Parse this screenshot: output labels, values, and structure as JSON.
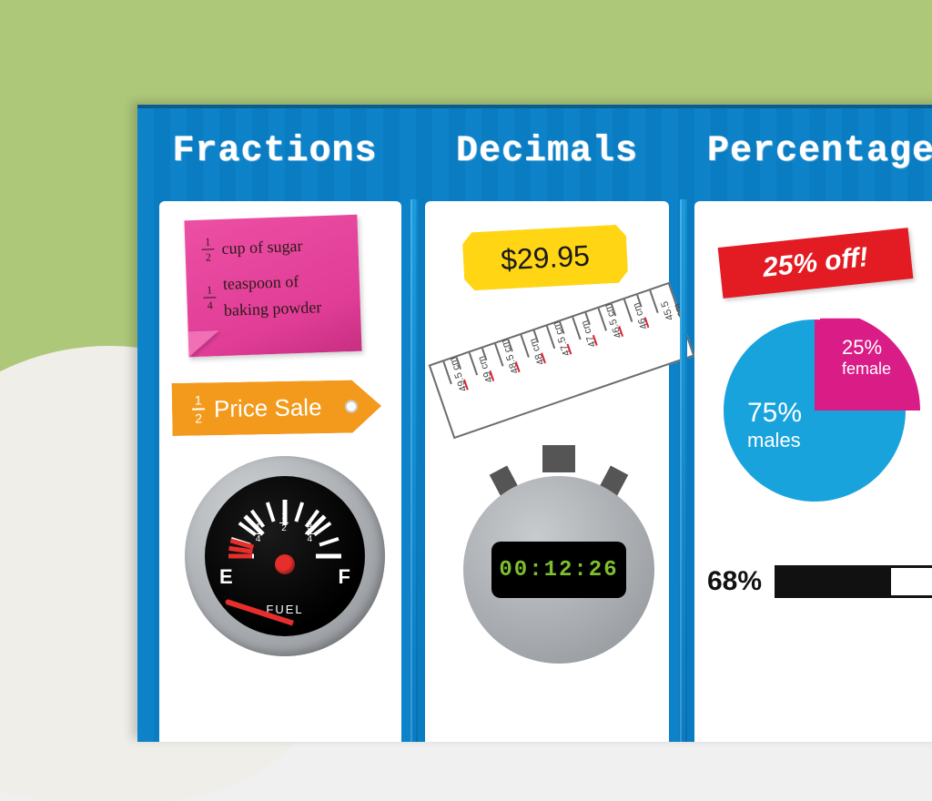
{
  "background": {
    "top_color": "#aec87a",
    "blob_color": "#efeee9"
  },
  "poster": {
    "stripe_colors": [
      "#1188cf",
      "#0a7cc2"
    ],
    "columns": [
      {
        "title": "Fractions"
      },
      {
        "title": "Decimals"
      },
      {
        "title": "Percentages"
      }
    ]
  },
  "fractions": {
    "sticky": {
      "bg": "#e13d97",
      "lines": [
        {
          "num": "1",
          "den": "2",
          "text": "cup of sugar"
        },
        {
          "num": "1",
          "den": "4",
          "text": "teaspoon of baking powder"
        }
      ]
    },
    "tag": {
      "bg": "#f39a1c",
      "frac_num": "1",
      "frac_den": "2",
      "text": "Price Sale"
    },
    "gauge": {
      "rim": "#a9acb0",
      "face": "#000",
      "left_label": "E",
      "right_label": "F",
      "bottom_label": "FUEL",
      "fracs": [
        {
          "num": "1",
          "den": "4",
          "angle": -45
        },
        {
          "num": "1",
          "den": "2",
          "angle": 0
        },
        {
          "num": "3",
          "den": "4",
          "angle": 45
        }
      ],
      "ticks_deg": [
        -90,
        -72,
        -54,
        -45,
        -36,
        -18,
        0,
        18,
        36,
        45,
        54,
        72,
        90
      ],
      "red_ticks_deg": [
        -90,
        -82,
        -74
      ],
      "needle_deg": -72,
      "needle_color": "#e62f2c"
    }
  },
  "decimals": {
    "price": {
      "bg": "#ffd514",
      "text": "$29.95"
    },
    "ruler": {
      "border": "#6b6b6b",
      "labels": [
        "49.5 cm",
        "49 cm",
        "48.5 cm",
        "48 cm",
        "47.5 cm",
        "47 cm",
        "46.5 cm",
        "46 cm",
        "45.5 cm"
      ]
    },
    "stopwatch": {
      "rim": "#a6a9ad",
      "screen_bg": "#000",
      "digit_color": "#7fbf2f",
      "time": "00:12:26"
    }
  },
  "percentages": {
    "off_tag": {
      "bg": "#e31b23",
      "text": "25% off!"
    },
    "pie": {
      "male_color": "#19a3dd",
      "female_color": "#d91c86",
      "male_pct": "75%",
      "male_label": "males",
      "female_pct": "25%",
      "female_label": "female",
      "female_angle_deg": 90
    },
    "progress": {
      "pct_text": "68%",
      "pct_value": 68,
      "track_border": "#111",
      "fill": "#111"
    }
  }
}
